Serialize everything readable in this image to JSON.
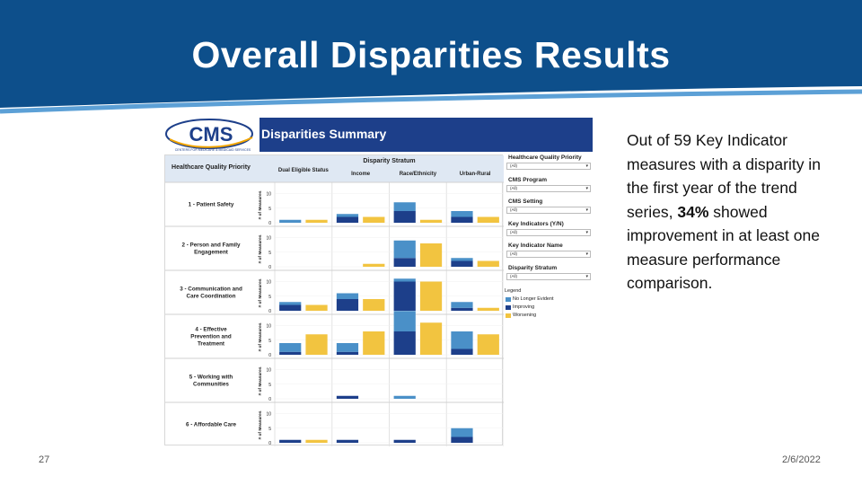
{
  "slide": {
    "title": "Overall Disparities Results",
    "page_number": "27",
    "date": "2/6/2022",
    "text_before": "Out of 59 Key Indicator measures with a disparity in the first year of the trend series, ",
    "text_bold": "34%",
    "text_after": " showed improvement in at least one measure performance comparison."
  },
  "dashboard": {
    "logo_text": "CMS",
    "logo_subtext": "CENTERS FOR MEDICARE & MEDICAID SERVICES",
    "title": "Disparities Summary",
    "stratum_header": "Disparity Stratum",
    "row_header": "Healthcare Quality Priority",
    "axis_label": "# of Measures",
    "filters": [
      {
        "label": "Healthcare Quality Priority",
        "value": "(All)"
      },
      {
        "label": "CMS Program",
        "value": "(All)"
      },
      {
        "label": "CMS Setting",
        "value": "(All)"
      },
      {
        "label": "Key Indicators (Y/N)",
        "value": "(All)"
      },
      {
        "label": "Key Indicator Name",
        "value": "(All)"
      },
      {
        "label": "Disparity Stratum",
        "value": "(All)"
      }
    ],
    "legend_title": "Legend",
    "legend": [
      {
        "label": "No Longer Evident",
        "color": "#4a90c8"
      },
      {
        "label": "Improving",
        "color": "#1d3f8a"
      },
      {
        "label": "Worsening",
        "color": "#f2c440"
      }
    ]
  },
  "chart_data": {
    "type": "bar",
    "title": "Disparities Summary",
    "ylabel": "# of Measures",
    "ylim": [
      0,
      12
    ],
    "yticks": [
      0,
      5,
      10
    ],
    "columns": [
      "Dual Eligible Status",
      "Income",
      "Race/Ethnicity",
      "Urban-Rural"
    ],
    "rows": [
      "1 - Patient Safety",
      "2 - Person and Family Engagement",
      "3 - Communication and Care Coordination",
      "4 - Effective Prevention and Treatment",
      "5 - Working with Communities",
      "6 - Affordable Care"
    ],
    "series_order": [
      "No Longer Evident",
      "Improving",
      "Worsening"
    ],
    "values": [
      [
        {
          "nle": 1,
          "imp": 0,
          "wor": 1
        },
        {
          "nle": 1,
          "imp": 2,
          "wor": 2
        },
        {
          "nle": 3,
          "imp": 4,
          "wor": 1
        },
        {
          "nle": 2,
          "imp": 2,
          "wor": 2
        }
      ],
      [
        {
          "nle": 0,
          "imp": 0,
          "wor": 0
        },
        {
          "nle": 0,
          "imp": 0,
          "wor": 1
        },
        {
          "nle": 6,
          "imp": 3,
          "wor": 8
        },
        {
          "nle": 1,
          "imp": 2,
          "wor": 2
        }
      ],
      [
        {
          "nle": 1,
          "imp": 2,
          "wor": 2
        },
        {
          "nle": 2,
          "imp": 4,
          "wor": 4
        },
        {
          "nle": 1,
          "imp": 10,
          "wor": 10
        },
        {
          "nle": 2,
          "imp": 1,
          "wor": 1
        }
      ],
      [
        {
          "nle": 3,
          "imp": 1,
          "wor": 7
        },
        {
          "nle": 3,
          "imp": 1,
          "wor": 8
        },
        {
          "nle": 7,
          "imp": 8,
          "wor": 11
        },
        {
          "nle": 6,
          "imp": 2,
          "wor": 7
        }
      ],
      [
        {
          "nle": 0,
          "imp": 0,
          "wor": 0
        },
        {
          "nle": 0,
          "imp": 1,
          "wor": 0
        },
        {
          "nle": 1,
          "imp": 0,
          "wor": 0
        },
        {
          "nle": 0,
          "imp": 0,
          "wor": 0
        }
      ],
      [
        {
          "nle": 0,
          "imp": 1,
          "wor": 1
        },
        {
          "nle": 0,
          "imp": 1,
          "wor": 0
        },
        {
          "nle": 0,
          "imp": 1,
          "wor": 0
        },
        {
          "nle": 3,
          "imp": 2,
          "wor": 0
        }
      ]
    ],
    "colors": {
      "No Longer Evident": "#4a90c8",
      "Improving": "#1d3f8a",
      "Worsening": "#f2c440"
    }
  }
}
